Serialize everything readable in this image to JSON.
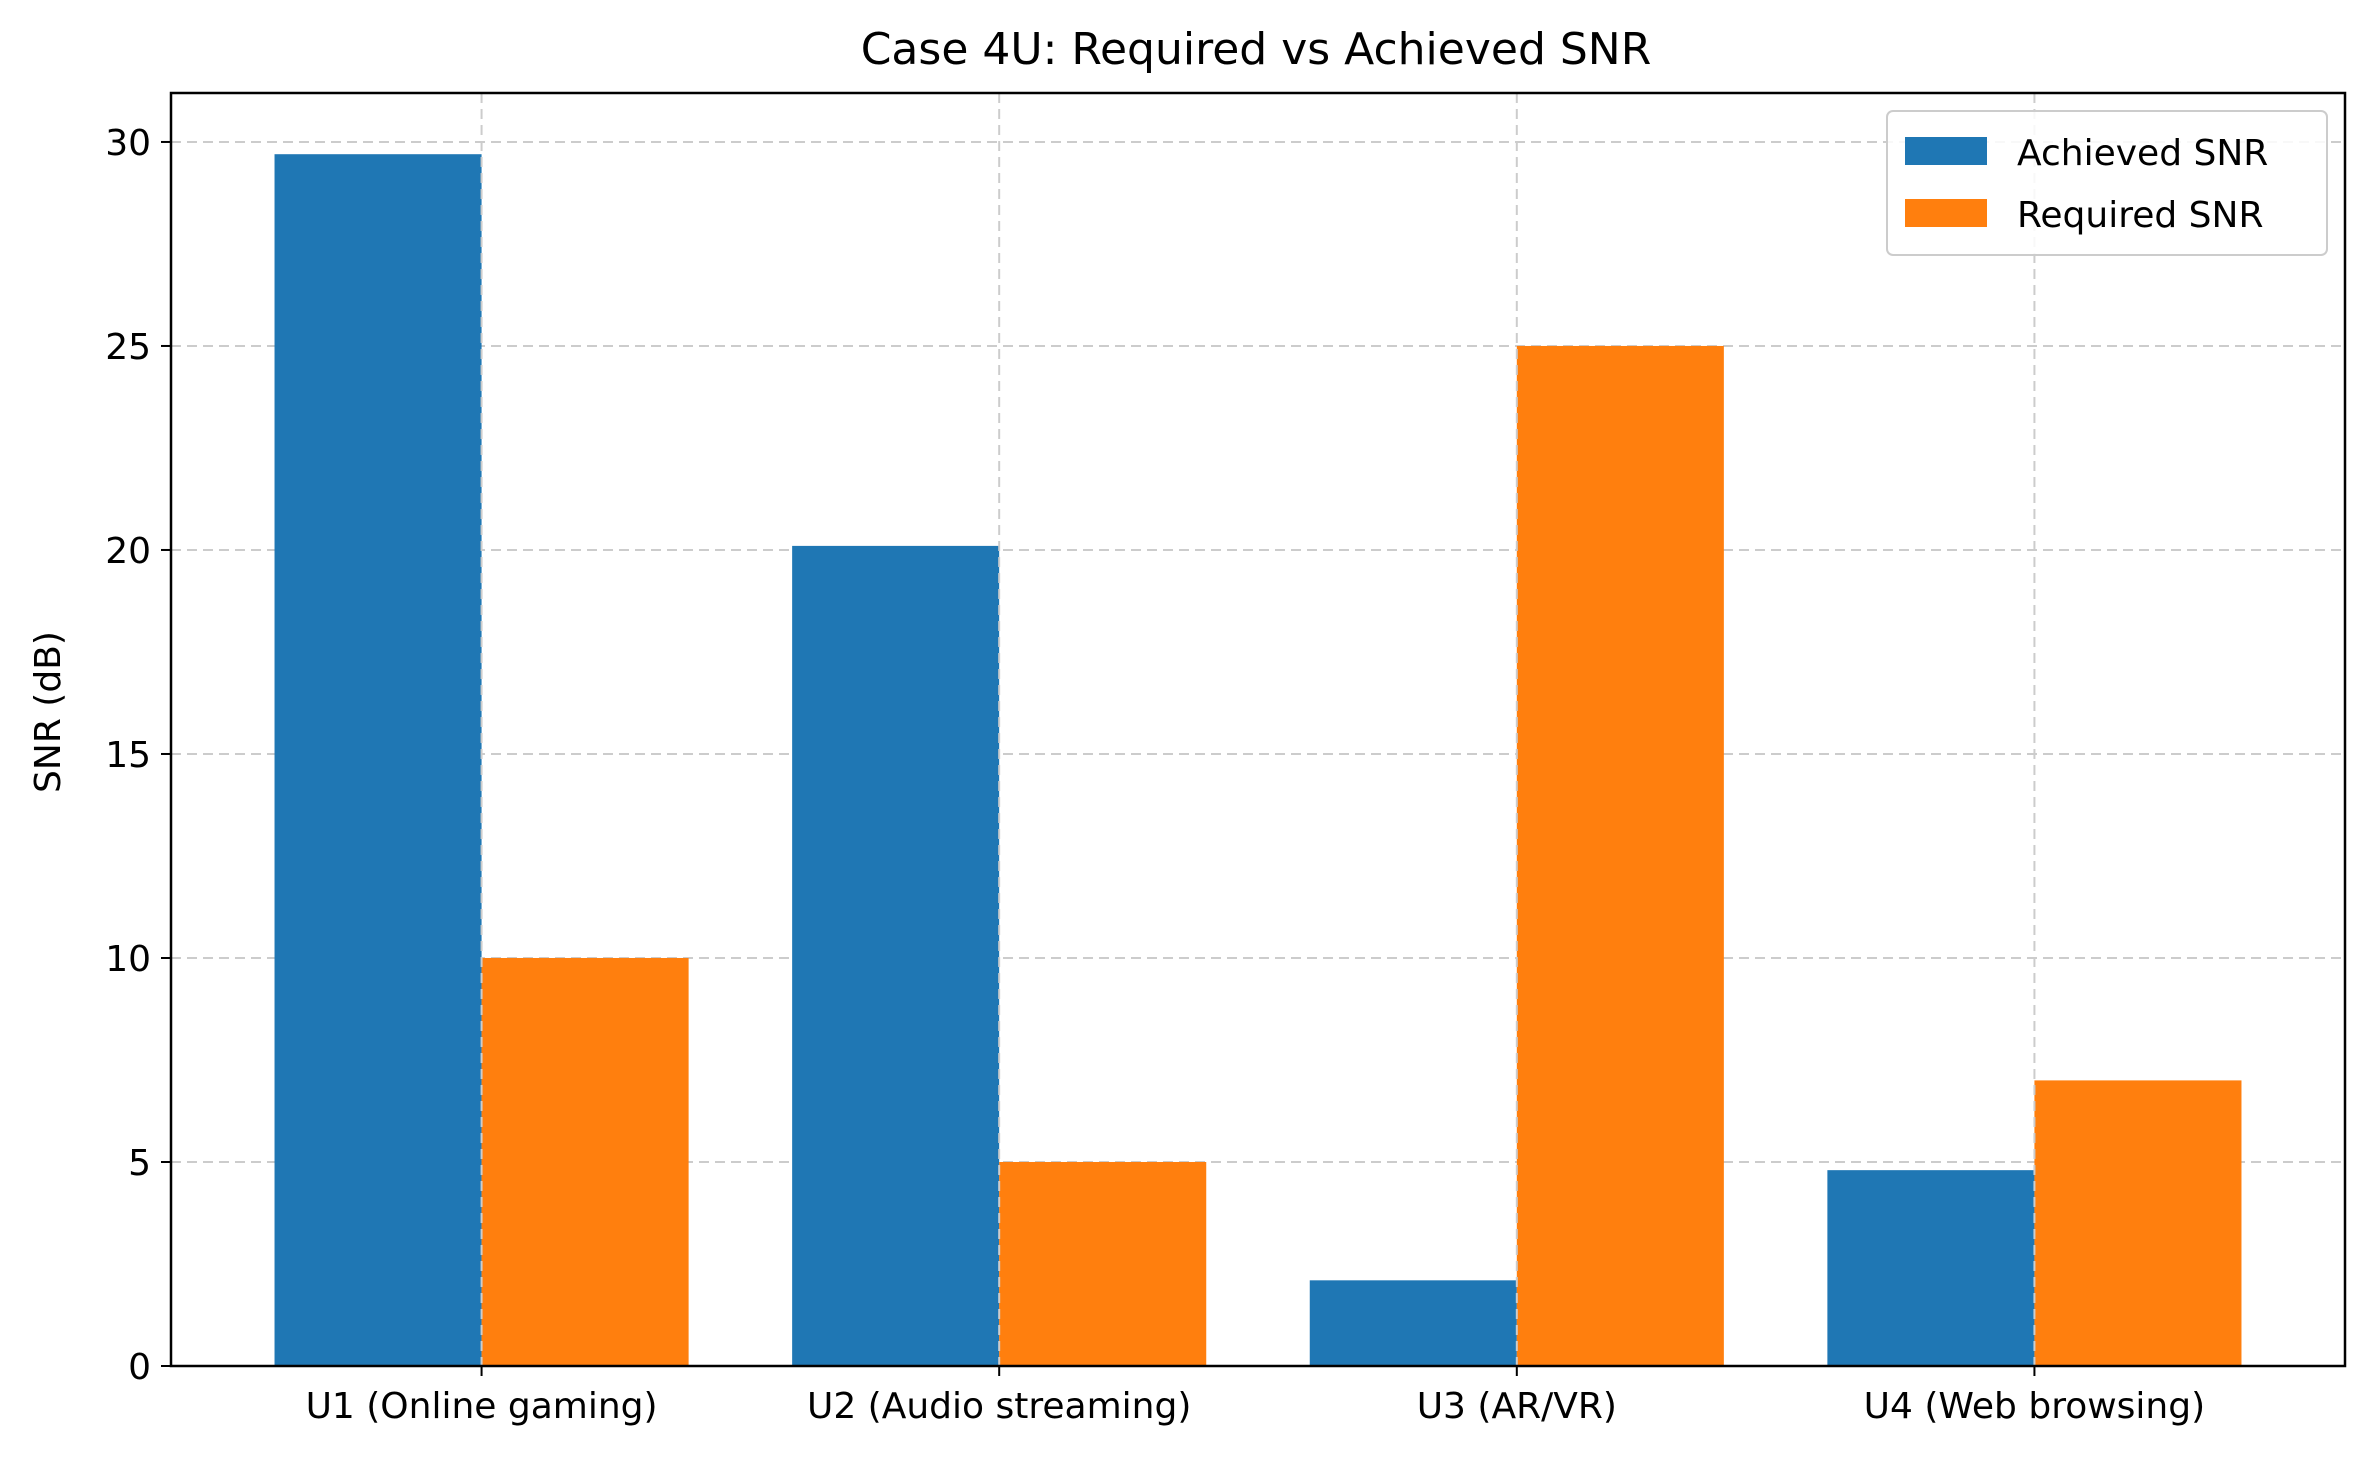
{
  "chart_data": {
    "type": "bar",
    "title": "Case 4U: Required vs Achieved SNR",
    "xlabel": "",
    "ylabel": "SNR (dB)",
    "categories": [
      "U1 (Online gaming)",
      "U2 (Audio streaming)",
      "U3 (AR/VR)",
      "U4 (Web browsing)"
    ],
    "series": [
      {
        "name": "Achieved SNR",
        "color": "#1f77b4",
        "values": [
          29.7,
          20.1,
          2.1,
          4.8
        ]
      },
      {
        "name": "Required SNR",
        "color": "#ff7f0e",
        "values": [
          10,
          5,
          25,
          7
        ]
      }
    ],
    "ylim": [
      0,
      31.2
    ],
    "yticks": [
      "0",
      "5",
      "10",
      "15",
      "20",
      "25",
      "30"
    ],
    "grid": true,
    "legend_position": "top-right"
  }
}
